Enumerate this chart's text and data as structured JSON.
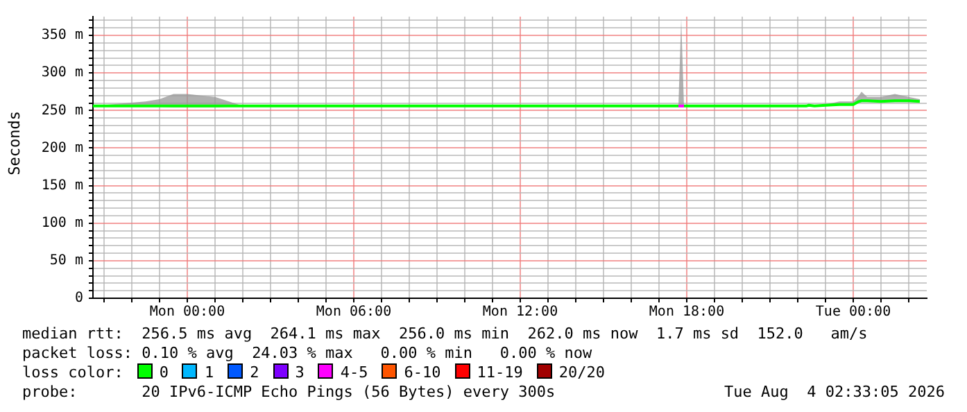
{
  "chart_data": {
    "type": "line",
    "ylabel": "Seconds",
    "legend_title": "loss color:",
    "legend": "bottom",
    "grid": true,
    "marker": "none",
    "line_style": "solid",
    "xlim": [
      "2026-08-02T20:36",
      "2026-08-04T02:39"
    ],
    "xticks": [
      {
        "value": "2026-08-02T21:00",
        "label": null
      },
      {
        "value": "2026-08-02T22:00",
        "label": null
      },
      {
        "value": "2026-08-02T23:00",
        "label": null
      },
      {
        "value": "2026-08-03T00:00",
        "label": "Mon 00:00"
      },
      {
        "value": "2026-08-03T01:00",
        "label": null
      },
      {
        "value": "2026-08-03T02:00",
        "label": null
      },
      {
        "value": "2026-08-03T03:00",
        "label": null
      },
      {
        "value": "2026-08-03T04:00",
        "label": null
      },
      {
        "value": "2026-08-03T05:00",
        "label": null
      },
      {
        "value": "2026-08-03T06:00",
        "label": "Mon 06:00"
      },
      {
        "value": "2026-08-03T07:00",
        "label": null
      },
      {
        "value": "2026-08-03T08:00",
        "label": null
      },
      {
        "value": "2026-08-03T09:00",
        "label": null
      },
      {
        "value": "2026-08-03T10:00",
        "label": null
      },
      {
        "value": "2026-08-03T11:00",
        "label": null
      },
      {
        "value": "2026-08-03T12:00",
        "label": "Mon 12:00"
      },
      {
        "value": "2026-08-03T13:00",
        "label": null
      },
      {
        "value": "2026-08-03T14:00",
        "label": null
      },
      {
        "value": "2026-08-03T15:00",
        "label": null
      },
      {
        "value": "2026-08-03T16:00",
        "label": null
      },
      {
        "value": "2026-08-03T17:00",
        "label": null
      },
      {
        "value": "2026-08-03T18:00",
        "label": "Mon 18:00"
      },
      {
        "value": "2026-08-03T19:00",
        "label": null
      },
      {
        "value": "2026-08-03T20:00",
        "label": null
      },
      {
        "value": "2026-08-03T21:00",
        "label": null
      },
      {
        "value": "2026-08-03T22:00",
        "label": null
      },
      {
        "value": "2026-08-03T23:00",
        "label": null
      },
      {
        "value": "2026-08-04T00:00",
        "label": "Tue 00:00"
      },
      {
        "value": "2026-08-04T01:00",
        "label": null
      },
      {
        "value": "2026-08-04T02:00",
        "label": null
      }
    ],
    "ylim": [
      0,
      375
    ],
    "yticks": [
      {
        "value": 0,
        "label": "0"
      },
      {
        "value": 10,
        "label": null
      },
      {
        "value": 20,
        "label": null
      },
      {
        "value": 30,
        "label": null
      },
      {
        "value": 40,
        "label": null
      },
      {
        "value": 50,
        "label": "50 m"
      },
      {
        "value": 60,
        "label": null
      },
      {
        "value": 70,
        "label": null
      },
      {
        "value": 80,
        "label": null
      },
      {
        "value": 90,
        "label": null
      },
      {
        "value": 100,
        "label": "100 m"
      },
      {
        "value": 110,
        "label": null
      },
      {
        "value": 120,
        "label": null
      },
      {
        "value": 130,
        "label": null
      },
      {
        "value": 140,
        "label": null
      },
      {
        "value": 150,
        "label": "150 m"
      },
      {
        "value": 160,
        "label": null
      },
      {
        "value": 170,
        "label": null
      },
      {
        "value": 180,
        "label": null
      },
      {
        "value": 190,
        "label": null
      },
      {
        "value": 200,
        "label": "200 m"
      },
      {
        "value": 210,
        "label": null
      },
      {
        "value": 220,
        "label": null
      },
      {
        "value": 230,
        "label": null
      },
      {
        "value": 240,
        "label": null
      },
      {
        "value": 250,
        "label": "250 m"
      },
      {
        "value": 260,
        "label": null
      },
      {
        "value": 270,
        "label": null
      },
      {
        "value": 280,
        "label": null
      },
      {
        "value": 290,
        "label": null
      },
      {
        "value": 300,
        "label": "300 m"
      },
      {
        "value": 310,
        "label": null
      },
      {
        "value": 320,
        "label": null
      },
      {
        "value": 330,
        "label": null
      },
      {
        "value": 340,
        "label": null
      },
      {
        "value": 350,
        "label": "350 m"
      },
      {
        "value": 360,
        "label": null
      },
      {
        "value": 370,
        "label": null
      }
    ],
    "series": [
      {
        "name": "0",
        "color": "#00ff00",
        "x": [
          "2026-08-02T20:36",
          "2026-08-02T22:30",
          "2026-08-02T23:00",
          "2026-08-02T23:30",
          "2026-08-03T00:00",
          "2026-08-03T00:30",
          "2026-08-03T01:00",
          "2026-08-03T01:30",
          "2026-08-03T02:00",
          "2026-08-03T12:00",
          "2026-08-03T17:42",
          "2026-08-03T17:48",
          "2026-08-03T17:54",
          "2026-08-03T22:18",
          "2026-08-03T22:24",
          "2026-08-03T22:36",
          "2026-08-03T23:00",
          "2026-08-03T23:30",
          "2026-08-04T00:00",
          "2026-08-04T00:12",
          "2026-08-04T00:18",
          "2026-08-04T00:30",
          "2026-08-04T01:00",
          "2026-08-04T01:30",
          "2026-08-04T02:00",
          "2026-08-04T02:24"
        ],
        "values": [
          256,
          256,
          256,
          256,
          256,
          256,
          256,
          256,
          256,
          256,
          256,
          null,
          256,
          256,
          257,
          256,
          257,
          258,
          258,
          262,
          263,
          263,
          262,
          263,
          263,
          262
        ],
        "lower": [
          256,
          256,
          255,
          254,
          254,
          254,
          254,
          255,
          256,
          256,
          256,
          256,
          256,
          256,
          256,
          256,
          256,
          257,
          257,
          260,
          261,
          261,
          261,
          261,
          261,
          261
        ],
        "upper": [
          256,
          262,
          265,
          272,
          272,
          270,
          268,
          262,
          256,
          256,
          256,
          372,
          256,
          256,
          257,
          256,
          258,
          262,
          262,
          270,
          275,
          268,
          268,
          272,
          268,
          265
        ]
      },
      {
        "name": "1",
        "color": "#00b8ff"
      },
      {
        "name": "2",
        "color": "#0059ff"
      },
      {
        "name": "3",
        "color": "#7e00ff"
      },
      {
        "name": "4-5",
        "color": "#ff00ff",
        "x": [
          "2026-08-03T17:42",
          "2026-08-03T17:54"
        ],
        "values": [
          256,
          256
        ]
      },
      {
        "name": "6-10",
        "color": "#ff5500"
      },
      {
        "name": "11-19",
        "color": "#ff0000"
      },
      {
        "name": "20/20",
        "color": "#a10000"
      }
    ],
    "annotations": [
      "median rtt:  256.5 ms avg  264.1 ms max  256.0 ms min  262.0 ms now  1.7 ms sd  152.0   am/s",
      "packet loss: 0.10 % avg  24.03 % max   0.00 % min   0.00 % now",
      "probe:       20 IPv6-ICMP Echo Pings (56 Bytes) every 300s",
      "Tue Aug  4 02:33:05 2026"
    ]
  }
}
